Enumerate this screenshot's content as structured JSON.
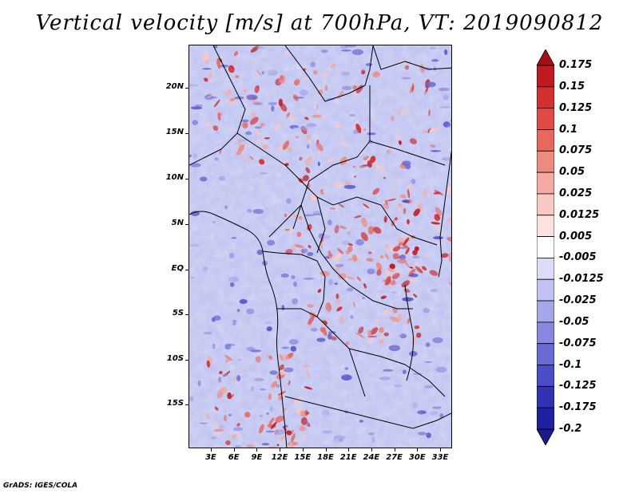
{
  "title": "Vertical velocity [m/s] at 700hPa, VT: 2019090812",
  "footer": "GrADS: IGES/COLA",
  "map": {
    "lat_labels": [
      "20N",
      "15N",
      "10N",
      "5N",
      "EQ",
      "5S",
      "10S",
      "15S"
    ],
    "lon_labels": [
      "3E",
      "6E",
      "9E",
      "12E",
      "15E",
      "18E",
      "21E",
      "24E",
      "27E",
      "30E",
      "33E"
    ],
    "field": "vertical velocity",
    "level": "700hPa",
    "valid_time": "2019090812"
  },
  "colorbar": {
    "labels": [
      "0.175",
      "0.15",
      "0.125",
      "0.1",
      "0.075",
      "0.05",
      "0.025",
      "0.0125",
      "0.005",
      "-0.005",
      "-0.0125",
      "-0.025",
      "-0.05",
      "-0.075",
      "-0.1",
      "-0.125",
      "-0.175",
      "-0.2"
    ],
    "colors": [
      "#a50f15",
      "#c01a1f",
      "#d4302e",
      "#e04a44",
      "#e8685e",
      "#ef8a80",
      "#f4aaa2",
      "#f8c8c2",
      "#fbe2de",
      "#ffffff",
      "#dcdcf8",
      "#c2c2f2",
      "#a6a6ea",
      "#8888e0",
      "#6a6ad4",
      "#4c4cc8",
      "#3232b4",
      "#2020a0",
      "#14148a"
    ],
    "top_arrow_color": "#a50f15",
    "bottom_arrow_color": "#1a1a8c"
  }
}
